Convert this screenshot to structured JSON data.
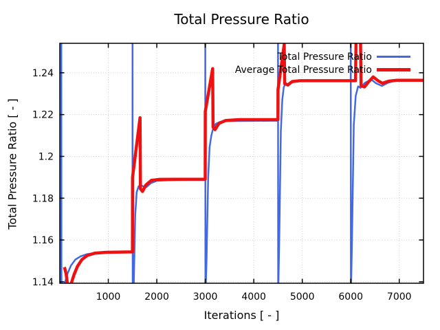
{
  "chart_data": {
    "type": "line",
    "title": "Total Pressure Ratio",
    "xlabel": "Iterations [ - ]",
    "ylabel": "Total Pressure Ratio [ - ]",
    "xlim": [
      0,
      7500
    ],
    "ylim": [
      1.1393,
      1.2541
    ],
    "grid": true,
    "grid_color": "#cccccc",
    "axis_color": "#000000",
    "background_color": "#ffffff",
    "legend_position": "top-right-inside",
    "xticks": {
      "values": [
        1000,
        2000,
        3000,
        4000,
        5000,
        6000,
        7000
      ],
      "labels": [
        "1000",
        "2000",
        "3000",
        "4000",
        "5000",
        "6000",
        "7000"
      ]
    },
    "yticks": {
      "values": [
        1.14,
        1.16,
        1.18,
        1.2,
        1.22,
        1.24
      ],
      "labels": [
        "1.14",
        "1.16",
        "1.18",
        "1.2",
        "1.22",
        "1.24"
      ]
    },
    "series": [
      {
        "name": "Total Pressure Ratio",
        "color": "#4169e1",
        "stroke_width": 2.5,
        "legend_sample_height": 3,
        "points": [
          [
            24,
            1.132
          ],
          [
            27,
            1.26
          ],
          [
            31,
            1.26
          ],
          [
            34,
            1.132
          ],
          [
            105,
            1.1395
          ],
          [
            160,
            1.144
          ],
          [
            230,
            1.1478
          ],
          [
            320,
            1.1506
          ],
          [
            430,
            1.1522
          ],
          [
            560,
            1.1532
          ],
          [
            750,
            1.1539
          ],
          [
            1000,
            1.1541
          ],
          [
            1498,
            1.1542
          ],
          [
            1500,
            1.26
          ],
          [
            1503,
            1.132
          ],
          [
            1525,
            1.139
          ],
          [
            1555,
            1.172
          ],
          [
            1585,
            1.1828
          ],
          [
            1625,
            1.1857
          ],
          [
            1675,
            1.1862
          ],
          [
            1725,
            1.1856
          ],
          [
            1785,
            1.1853
          ],
          [
            1875,
            1.1872
          ],
          [
            2000,
            1.1883
          ],
          [
            2250,
            1.1886
          ],
          [
            2998,
            1.1887
          ],
          [
            3000,
            1.26
          ],
          [
            3003,
            1.132
          ],
          [
            3025,
            1.15
          ],
          [
            3060,
            1.19
          ],
          [
            3090,
            1.2045
          ],
          [
            3125,
            1.21
          ],
          [
            3165,
            1.2135
          ],
          [
            3215,
            1.2155
          ],
          [
            3305,
            1.2165
          ],
          [
            3460,
            1.2169
          ],
          [
            4498,
            1.2171
          ],
          [
            4500,
            1.26
          ],
          [
            4503,
            1.132
          ],
          [
            4525,
            1.16
          ],
          [
            4558,
            1.212
          ],
          [
            4588,
            1.227
          ],
          [
            4618,
            1.233
          ],
          [
            4658,
            1.2352
          ],
          [
            4708,
            1.2338
          ],
          [
            4772,
            1.2352
          ],
          [
            4872,
            1.236
          ],
          [
            5100,
            1.2361
          ],
          [
            5998,
            1.2361
          ],
          [
            6000,
            1.26
          ],
          [
            6003,
            1.132
          ],
          [
            6025,
            1.16
          ],
          [
            6062,
            1.215
          ],
          [
            6102,
            1.229
          ],
          [
            6152,
            1.2335
          ],
          [
            6202,
            1.2328
          ],
          [
            6292,
            1.2352
          ],
          [
            6422,
            1.2368
          ],
          [
            6522,
            1.235
          ],
          [
            6642,
            1.2337
          ],
          [
            6762,
            1.2352
          ],
          [
            6902,
            1.2361
          ],
          [
            7200,
            1.2362
          ],
          [
            7500,
            1.2362
          ]
        ]
      },
      {
        "name": "Average Total Pressure Ratio",
        "color": "#ee1111",
        "stroke_width": 4.5,
        "legend_sample_height": 5,
        "points": [
          [
            95,
            1.147
          ],
          [
            130,
            1.1438
          ],
          [
            158,
            1.139
          ],
          [
            175,
            1.132
          ],
          [
            215,
            1.132
          ],
          [
            240,
            1.1395
          ],
          [
            295,
            1.1435
          ],
          [
            365,
            1.1474
          ],
          [
            455,
            1.1506
          ],
          [
            565,
            1.1526
          ],
          [
            725,
            1.1537
          ],
          [
            955,
            1.1541
          ],
          [
            1499,
            1.1543
          ],
          [
            1500,
            1.19
          ],
          [
            1655,
            1.2185
          ],
          [
            1663,
            1.1845
          ],
          [
            1705,
            1.1832
          ],
          [
            1775,
            1.1863
          ],
          [
            1885,
            1.1885
          ],
          [
            2060,
            1.189
          ],
          [
            2999,
            1.1891
          ],
          [
            3000,
            1.2215
          ],
          [
            3152,
            1.242
          ],
          [
            3160,
            1.214
          ],
          [
            3202,
            1.2128
          ],
          [
            3282,
            1.2158
          ],
          [
            3422,
            1.2172
          ],
          [
            3700,
            1.2176
          ],
          [
            4499,
            1.2176
          ],
          [
            4500,
            1.232
          ],
          [
            4628,
            1.2535
          ],
          [
            4637,
            1.2348
          ],
          [
            4702,
            1.2342
          ],
          [
            4792,
            1.2358
          ],
          [
            4952,
            1.2362
          ],
          [
            5500,
            1.2362
          ],
          [
            6098,
            1.2362
          ],
          [
            6112,
            1.26
          ],
          [
            6198,
            1.26
          ],
          [
            6212,
            1.2338
          ],
          [
            6282,
            1.2332
          ],
          [
            6382,
            1.236
          ],
          [
            6462,
            1.238
          ],
          [
            6562,
            1.2362
          ],
          [
            6652,
            1.235
          ],
          [
            6782,
            1.236
          ],
          [
            6952,
            1.2364
          ],
          [
            7500,
            1.2364
          ]
        ]
      }
    ]
  }
}
